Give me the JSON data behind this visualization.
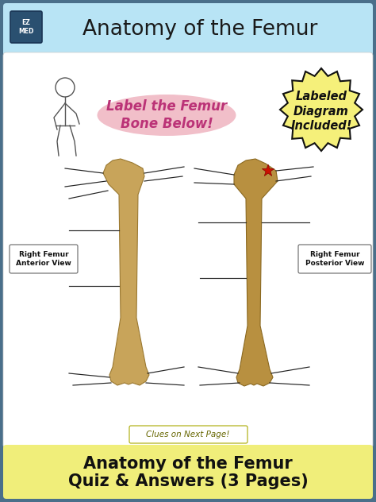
{
  "outer_bg": "#4a6f8a",
  "header_bg": "#b8e4f5",
  "header_text": "Anatomy of the Femur",
  "header_text_color": "#1a1a1a",
  "main_bg": "#ffffff",
  "footer_bg": "#f0ee7a",
  "footer_line1": "Anatomy of the Femur",
  "footer_line2": "Quiz & Answers (3 Pages)",
  "footer_text_color": "#111111",
  "label_text": "Label the Femur\nBone Below!",
  "label_text_color": "#bb3377",
  "label_bg": "#f0b8c4",
  "badge_text": "Labeled\nDiagram\nIncluded!",
  "badge_bg": "#f5f07a",
  "badge_border": "#111111",
  "clues_text": "Clues on Next Page!",
  "left_view_label": "Right Femur\nAnterior View",
  "right_view_label": "Right Femur\nPosterior View",
  "bone_color_left": "#c8a45a",
  "bone_edge_left": "#9a7830",
  "bone_color_right": "#b89040",
  "bone_edge_right": "#8a6820",
  "line_color": "#222222",
  "star_color": "#cc1100",
  "star_edge": "#880000"
}
